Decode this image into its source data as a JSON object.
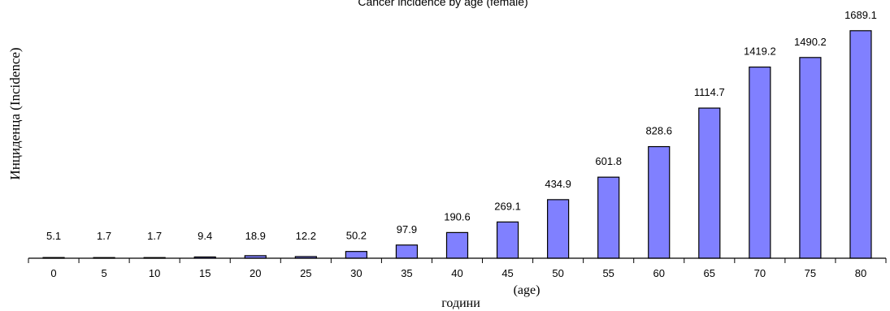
{
  "chart_data": {
    "type": "bar",
    "title": "Cancer incidence  by age (female)",
    "xlabel": "години",
    "xlabel_suffix": "(age)",
    "ylabel": "Инциденца  (Incidence)",
    "categories": [
      "0",
      "5",
      "10",
      "15",
      "20",
      "25",
      "30",
      "35",
      "40",
      "45",
      "50",
      "55",
      "60",
      "65",
      "70",
      "75",
      "80"
    ],
    "values": [
      5.1,
      1.7,
      1.7,
      9.4,
      18.9,
      12.2,
      50.2,
      97.9,
      190.6,
      269.1,
      434.9,
      601.8,
      828.6,
      1114.7,
      1419.2,
      1490.2,
      1689.1
    ],
    "value_labels": [
      "5.1",
      "1.7",
      "1.7",
      "9.4",
      "18.9",
      "12.2",
      "50.2",
      "97.9",
      "190.6",
      "269.1",
      "434.9",
      "601.8",
      "828.6",
      "1114.7",
      "1419.2",
      "1490.2",
      "1689.1"
    ],
    "ylim": [
      0,
      1700
    ],
    "grid": false,
    "legend": "none",
    "bar_color": "#8080ff"
  }
}
